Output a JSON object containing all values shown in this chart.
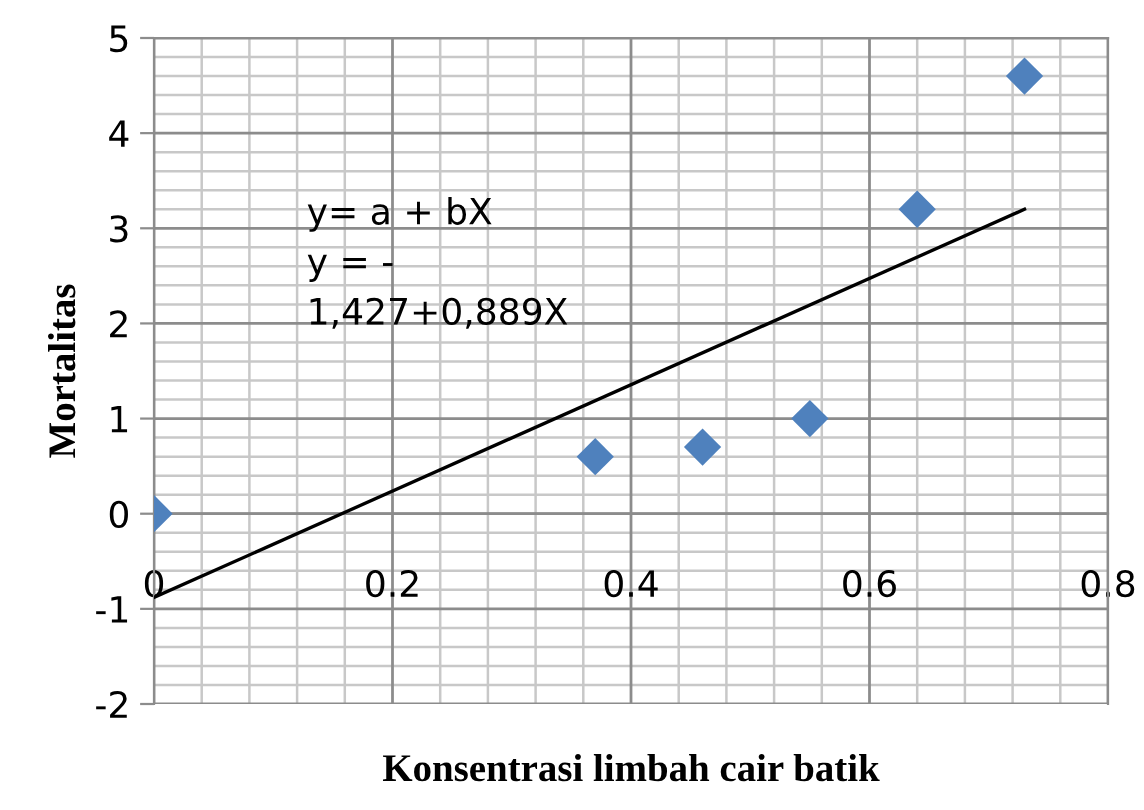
{
  "chart_data": {
    "type": "scatter",
    "xlabel": "Konsentrasi limbah cair batik",
    "ylabel": "Mortalitas",
    "xlim": [
      0,
      0.8
    ],
    "xticks": [
      0,
      0.2,
      0.4,
      0.6,
      0.8
    ],
    "ylim": [
      -2,
      5
    ],
    "yticks": [
      -2,
      -1,
      0,
      1,
      2,
      3,
      4,
      5
    ],
    "grid": true,
    "series": [
      {
        "marker": "diamond",
        "color": "#4f81bd",
        "x": [
          0,
          0.37,
          0.46,
          0.55,
          0.64,
          0.73
        ],
        "values": [
          0,
          0.6,
          0.7,
          1.0,
          3.2,
          4.6
        ]
      },
      {
        "type": "line",
        "color": "#000000",
        "x": [
          0,
          0.73
        ],
        "values": [
          -0.88,
          3.2
        ]
      }
    ],
    "annotations": [
      "y= a + bX\ny = -\n1,427+0,889X"
    ]
  }
}
